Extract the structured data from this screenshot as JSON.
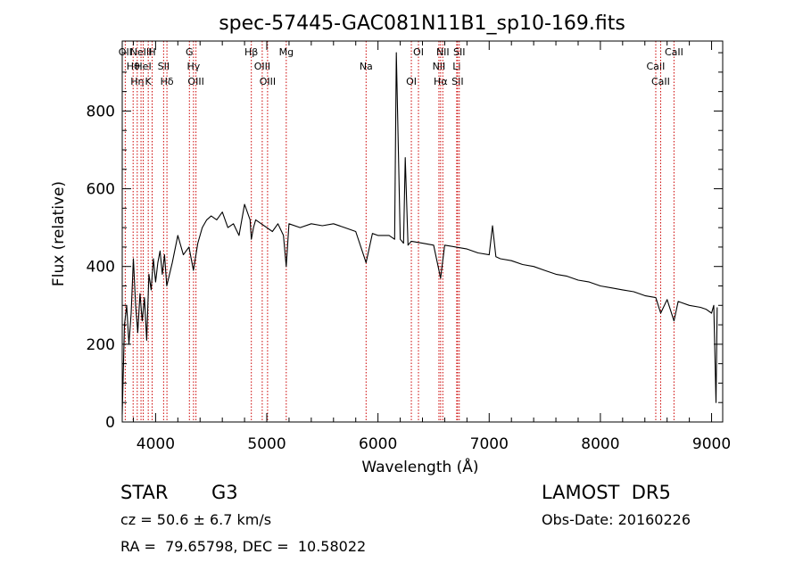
{
  "chart_data": {
    "type": "line",
    "title": "spec-57445-GAC081N11B1_sp10-169.fits",
    "xlabel": "Wavelength (Å)",
    "ylabel": "Flux (relative)",
    "xlim": [
      3700,
      9100
    ],
    "ylim": [
      0,
      980
    ],
    "x_ticks": [
      4000,
      5000,
      6000,
      7000,
      8000,
      9000
    ],
    "y_ticks": [
      0,
      200,
      400,
      600,
      800
    ],
    "x_tick_labels": [
      "4000",
      "5000",
      "6000",
      "7000",
      "8000",
      "9000"
    ],
    "y_tick_labels": [
      "0",
      "200",
      "400",
      "600",
      "800"
    ],
    "grid": false,
    "colors": {
      "spectrum": "#000000",
      "lines": "#cc0000"
    },
    "series": [
      {
        "x": [
          3700,
          3720,
          3740,
          3760,
          3780,
          3800,
          3820,
          3840,
          3860,
          3880,
          3900,
          3920,
          3940,
          3960,
          3980,
          4000,
          4020,
          4040,
          4060,
          4080,
          4100,
          4150,
          4200,
          4250,
          4300,
          4340,
          4380,
          4420,
          4460,
          4500,
          4550,
          4600,
          4650,
          4700,
          4750,
          4800,
          4850,
          4861,
          4880,
          4900,
          4950,
          5000,
          5050,
          5100,
          5150,
          5175,
          5200,
          5300,
          5400,
          5500,
          5600,
          5700,
          5800,
          5893,
          5950,
          6000,
          6100,
          6150,
          6165,
          6200,
          6230,
          6245,
          6270,
          6300,
          6400,
          6500,
          6563,
          6600,
          6700,
          6800,
          6900,
          7000,
          7030,
          7060,
          7100,
          7200,
          7300,
          7400,
          7500,
          7600,
          7700,
          7800,
          7900,
          8000,
          8100,
          8200,
          8300,
          8400,
          8498,
          8542,
          8600,
          8662,
          8700,
          8800,
          8900,
          8950,
          9000,
          9020,
          9040,
          9050
        ],
        "y": [
          20,
          250,
          300,
          200,
          280,
          420,
          300,
          230,
          330,
          260,
          320,
          210,
          380,
          340,
          420,
          360,
          410,
          440,
          380,
          430,
          350,
          410,
          480,
          430,
          450,
          390,
          460,
          500,
          520,
          530,
          520,
          540,
          500,
          510,
          480,
          560,
          520,
          470,
          500,
          520,
          510,
          500,
          490,
          510,
          480,
          400,
          510,
          500,
          510,
          505,
          510,
          500,
          490,
          410,
          485,
          480,
          480,
          470,
          950,
          470,
          460,
          680,
          455,
          465,
          460,
          455,
          370,
          455,
          450,
          445,
          435,
          430,
          505,
          425,
          420,
          415,
          405,
          400,
          390,
          380,
          375,
          365,
          360,
          350,
          345,
          340,
          335,
          325,
          320,
          280,
          315,
          260,
          310,
          300,
          295,
          290,
          280,
          300,
          50,
          295
        ]
      }
    ],
    "line_markers": [
      {
        "wave": 3727,
        "label": "OII"
      },
      {
        "wave": 3798,
        "label": "Hθ"
      },
      {
        "wave": 3835,
        "label": "Hη"
      },
      {
        "wave": 3869,
        "label": "NeIII"
      },
      {
        "wave": 3889,
        "label": "HeI"
      },
      {
        "wave": 3934,
        "label": "K"
      },
      {
        "wave": 3969,
        "label": "H"
      },
      {
        "wave": 4072,
        "label": "SII"
      },
      {
        "wave": 4102,
        "label": "Hδ"
      },
      {
        "wave": 4304,
        "label": "G"
      },
      {
        "wave": 4341,
        "label": "Hγ"
      },
      {
        "wave": 4363,
        "label": "OIII"
      },
      {
        "wave": 4861,
        "label": "Hβ"
      },
      {
        "wave": 4959,
        "label": "OIII"
      },
      {
        "wave": 5007,
        "label": "OIII"
      },
      {
        "wave": 5175,
        "label": "Mg"
      },
      {
        "wave": 5893,
        "label": "Na"
      },
      {
        "wave": 6300,
        "label": "OI"
      },
      {
        "wave": 6364,
        "label": "OI"
      },
      {
        "wave": 6548,
        "label": "NII"
      },
      {
        "wave": 6563,
        "label": "Hα"
      },
      {
        "wave": 6583,
        "label": "NII"
      },
      {
        "wave": 6708,
        "label": "Li"
      },
      {
        "wave": 6716,
        "label": "SII"
      },
      {
        "wave": 6731,
        "label": "SII"
      },
      {
        "wave": 8498,
        "label": "CaII"
      },
      {
        "wave": 8542,
        "label": "CaII"
      },
      {
        "wave": 8662,
        "label": "CaII"
      }
    ]
  },
  "info": {
    "object_class": "STAR",
    "subclass": "G3",
    "cz": "cz = 50.6 ± 6.7 km/s",
    "coords": "RA =  79.65798, DEC =  10.58022",
    "survey": "LAMOST  DR5",
    "obs_date": "Obs-Date: 20160226"
  }
}
